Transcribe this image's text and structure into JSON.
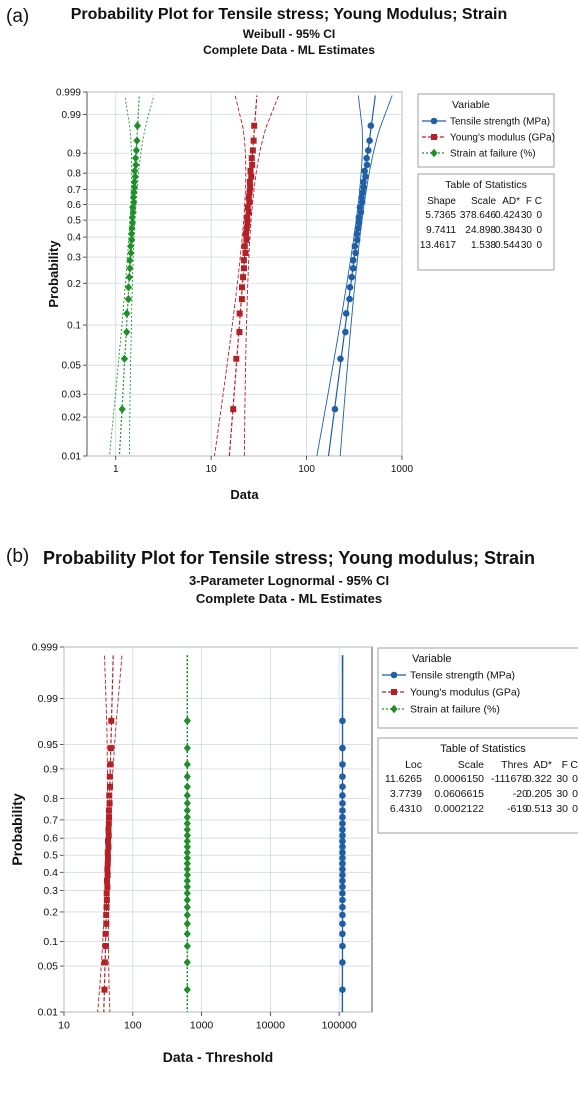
{
  "chart_data": [
    {
      "type": "scatter",
      "panel_label": "(a)",
      "title": "Probability Plot for Tensile stress; Young Modulus; Strain",
      "subtitle": "Weibull - 95% CI",
      "subtitle2": "Complete Data - ML Estimates",
      "xlabel": "Data",
      "ylabel": "Probability",
      "xscale": "log",
      "xlim": [
        0.5,
        1000
      ],
      "ylim": [
        0.01,
        0.999
      ],
      "x_ticks": [
        "1",
        "10",
        "100",
        "1000"
      ],
      "y_ticks": [
        "0.01",
        "0.02",
        "0.03",
        "0.05",
        "0.1",
        "0.2",
        "0.3",
        "0.4",
        "0.5",
        "0.6",
        "0.7",
        "0.8",
        "0.9",
        "0.99",
        "0.999"
      ],
      "grid": true,
      "legend_title": "Variable",
      "series": [
        {
          "name": "Tensile strength (MPa)",
          "color": "#1f5fa8",
          "marker": "circle",
          "distribution": "weibull",
          "shape": 5.7365,
          "scale": 378.646,
          "n": 30
        },
        {
          "name": "Young's modulus (GPa)",
          "color": "#b32025",
          "marker": "square",
          "distribution": "weibull",
          "shape": 9.7411,
          "scale": 24.898,
          "n": 30
        },
        {
          "name": "Strain at failure (%)",
          "color": "#1f8f2a",
          "marker": "diamond",
          "distribution": "weibull",
          "shape": 13.4617,
          "scale": 1.538,
          "n": 30
        }
      ],
      "stats_table": {
        "title": "Table of Statistics",
        "headers": [
          "Shape",
          "Scale",
          "AD*",
          "F",
          "C"
        ],
        "rows": [
          [
            "5.7365",
            "378.646",
            "0.424",
            "30",
            "0"
          ],
          [
            "9.7411",
            "24.898",
            "0.384",
            "30",
            "0"
          ],
          [
            "13.4617",
            "1.538",
            "0.544",
            "30",
            "0"
          ]
        ]
      }
    },
    {
      "type": "scatter",
      "panel_label": "(b)",
      "title": "Probability Plot for Tensile stress; Young modulus; Strain",
      "subtitle": "3-Parameter Lognormal - 95% CI",
      "subtitle2": "Complete Data - ML Estimates",
      "xlabel": "Data - Threshold",
      "ylabel": "Probability",
      "xscale": "log",
      "xlim": [
        10,
        300000
      ],
      "ylim": [
        0.01,
        0.999
      ],
      "x_ticks": [
        "10",
        "100",
        "1000",
        "10000",
        "100000"
      ],
      "y_ticks": [
        "0.01",
        "0.05",
        "0.1",
        "0.2",
        "0.3",
        "0.4",
        "0.5",
        "0.6",
        "0.7",
        "0.8",
        "0.9",
        "0.95",
        "0.99",
        "0.999"
      ],
      "grid": true,
      "legend_title": "Variable",
      "series": [
        {
          "name": "Tensile strength (MPa)",
          "color": "#1f5fa8",
          "marker": "circle",
          "distribution": "lognormal3",
          "loc": 11.6265,
          "scale": 0.000615,
          "n": 30
        },
        {
          "name": "Young's modulus (GPa)",
          "color": "#b32025",
          "marker": "square",
          "distribution": "lognormal3",
          "loc": 3.7739,
          "scale": 0.0606615,
          "n": 30
        },
        {
          "name": "Strain at failure (%)",
          "color": "#1f8f2a",
          "marker": "diamond",
          "distribution": "lognormal3",
          "loc": 6.431,
          "scale": 0.0002122,
          "n": 30
        }
      ],
      "stats_table": {
        "title": "Table of Statistics",
        "headers": [
          "Loc",
          "Scale",
          "Thres",
          "AD*",
          "F",
          "C"
        ],
        "rows": [
          [
            "11.6265",
            "0.0006150",
            "-111678",
            "0.322",
            "30",
            "0"
          ],
          [
            "3.7739",
            "0.0606615",
            "-20",
            "0.205",
            "30",
            "0"
          ],
          [
            "6.4310",
            "0.0002122",
            "-619",
            "0.513",
            "30",
            "0"
          ]
        ]
      }
    }
  ]
}
